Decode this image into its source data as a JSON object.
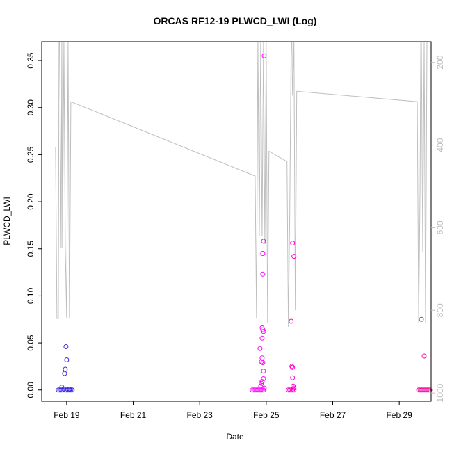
{
  "chart_data": {
    "type": "scatter",
    "title": "ORCAS RF12-19 PLWCD_LWI (Log)",
    "xlabel": "Date",
    "ylabel": "PLWCD_LWI",
    "xlim": [
      "2016-02-18T06:00",
      "2016-02-29T23:00"
    ],
    "ylim": [
      -0.012,
      0.37
    ],
    "y_ticks": [
      0.0,
      0.05,
      0.1,
      0.15,
      0.2,
      0.25,
      0.3,
      0.35
    ],
    "y_tick_labels": [
      "0.00",
      "0.05",
      "0.10",
      "0.15",
      "0.20",
      "0.25",
      "0.30",
      "0.35"
    ],
    "x_ticks": [
      "2016-02-19",
      "2016-02-21",
      "2016-02-23",
      "2016-02-25",
      "2016-02-27",
      "2016-02-29"
    ],
    "x_tick_labels": [
      "Feb 19",
      "Feb 21",
      "Feb 23",
      "Feb 25",
      "Feb 27",
      "Feb 29"
    ],
    "right_axis": {
      "reversed": true,
      "lim": [
        1020,
        150
      ],
      "ticks": [
        200,
        400,
        600,
        800,
        1000
      ],
      "tick_labels": [
        "200",
        "400",
        "600",
        "800",
        "1000"
      ],
      "color": "#bebebe"
    },
    "grid": false,
    "legend": "none",
    "series": [
      {
        "color": "#3c28e0",
        "points": [
          [
            "2016-02-18T18:00",
            0.0
          ],
          [
            "2016-02-18T19:00",
            0.0
          ],
          [
            "2016-02-18T20:00",
            0.0
          ],
          [
            "2016-02-18T21:00",
            0.0
          ],
          [
            "2016-02-18T22:00",
            0.001
          ],
          [
            "2016-02-18T23:00",
            0.0
          ],
          [
            "2016-02-19T00:00",
            0.0
          ],
          [
            "2016-02-19T01:00",
            0.0
          ],
          [
            "2016-02-19T02:00",
            0.0
          ],
          [
            "2016-02-19T03:00",
            0.0
          ],
          [
            "2016-02-19T04:00",
            0.0
          ],
          [
            "2016-02-18T20:30",
            0.003
          ],
          [
            "2016-02-18T22:30",
            0.0175
          ],
          [
            "2016-02-18T23:00",
            0.022
          ],
          [
            "2016-02-19T00:00",
            0.032
          ],
          [
            "2016-02-18T23:30",
            0.046
          ],
          [
            "2016-02-19T02:00",
            0.001
          ]
        ]
      },
      {
        "color": "#ff00ff",
        "points": [
          [
            "2016-02-24T14:00",
            0.0
          ],
          [
            "2016-02-24T15:00",
            0.0
          ],
          [
            "2016-02-24T16:00",
            0.0
          ],
          [
            "2016-02-24T17:00",
            0.0
          ],
          [
            "2016-02-24T18:00",
            0.0
          ],
          [
            "2016-02-24T19:00",
            0.0
          ],
          [
            "2016-02-24T20:00",
            0.0
          ],
          [
            "2016-02-24T21:00",
            0.0
          ],
          [
            "2016-02-24T22:00",
            0.0
          ],
          [
            "2016-02-24T20:00",
            0.004
          ],
          [
            "2016-02-24T20:30",
            0.007
          ],
          [
            "2016-02-24T21:00",
            0.009
          ],
          [
            "2016-02-24T19:30",
            0.044
          ],
          [
            "2016-02-24T20:30",
            0.03
          ],
          [
            "2016-02-24T21:00",
            0.034
          ],
          [
            "2016-02-24T21:30",
            0.029
          ],
          [
            "2016-02-24T22:00",
            0.02
          ],
          [
            "2016-02-24T21:00",
            0.055
          ],
          [
            "2016-02-24T21:00",
            0.066
          ],
          [
            "2016-02-24T21:30",
            0.064
          ],
          [
            "2016-02-24T22:00",
            0.062
          ],
          [
            "2016-02-24T21:30",
            0.123
          ],
          [
            "2016-02-24T21:30",
            0.145
          ],
          [
            "2016-02-24T22:00",
            0.158
          ],
          [
            "2016-02-24T22:30",
            0.355
          ],
          [
            "2016-02-24T22:00",
            0.012
          ],
          [
            "2016-02-24T22:30",
            0.002
          ]
        ]
      },
      {
        "color": "#ff00cc",
        "points": [
          [
            "2016-02-25T16:00",
            0.0
          ],
          [
            "2016-02-25T17:00",
            0.0
          ],
          [
            "2016-02-25T18:00",
            0.0
          ],
          [
            "2016-02-25T19:00",
            0.0
          ],
          [
            "2016-02-25T20:00",
            0.0
          ],
          [
            "2016-02-25T18:00",
            0.073
          ],
          [
            "2016-02-25T18:30",
            0.025
          ],
          [
            "2016-02-25T19:00",
            0.024
          ],
          [
            "2016-02-25T19:00",
            0.013
          ],
          [
            "2016-02-25T19:30",
            0.004
          ],
          [
            "2016-02-25T19:00",
            0.156
          ],
          [
            "2016-02-25T20:00",
            0.142
          ],
          [
            "2016-02-25T20:00",
            0.002
          ]
        ]
      },
      {
        "color": "#ff0099",
        "points": [
          [
            "2016-02-29T14:00",
            0.0
          ],
          [
            "2016-02-29T15:00",
            0.0
          ],
          [
            "2016-02-29T16:00",
            0.0
          ],
          [
            "2016-02-29T17:00",
            0.0
          ],
          [
            "2016-02-29T18:00",
            0.0
          ],
          [
            "2016-02-29T19:00",
            0.0
          ],
          [
            "2016-02-29T20:00",
            0.0
          ],
          [
            "2016-02-29T21:00",
            0.0
          ],
          [
            "2016-02-29T22:00",
            0.0
          ],
          [
            "2016-02-29T16:00",
            0.075
          ],
          [
            "2016-02-29T18:00",
            0.036
          ]
        ]
      }
    ],
    "overlay_line": {
      "axis": "right",
      "color": "#bebebe",
      "points": [
        [
          "2016-02-18T16:00",
          405
        ],
        [
          "2016-02-18T17:00",
          820
        ],
        [
          "2016-02-18T18:00",
          820
        ],
        [
          "2016-02-18T18:30",
          150
        ],
        [
          "2016-02-18T19:00",
          150
        ],
        [
          "2016-02-18T20:00",
          650
        ],
        [
          "2016-02-18T20:30",
          150
        ],
        [
          "2016-02-18T21:00",
          650
        ],
        [
          "2016-02-18T22:00",
          150
        ],
        [
          "2016-02-18T23:00",
          650
        ],
        [
          "2016-02-19T00:00",
          820
        ],
        [
          "2016-02-19T01:00",
          150
        ],
        [
          "2016-02-19T02:00",
          820
        ],
        [
          "2016-02-19T03:00",
          295
        ],
        [
          "2016-02-24T16:00",
          475
        ],
        [
          "2016-02-24T17:00",
          820
        ],
        [
          "2016-02-24T18:00",
          150
        ],
        [
          "2016-02-24T19:00",
          620
        ],
        [
          "2016-02-24T20:00",
          150
        ],
        [
          "2016-02-24T21:00",
          620
        ],
        [
          "2016-02-24T22:00",
          150
        ],
        [
          "2016-02-24T23:00",
          640
        ],
        [
          "2016-02-25T00:00",
          150
        ],
        [
          "2016-02-25T01:00",
          830
        ],
        [
          "2016-02-25T02:00",
          415
        ],
        [
          "2016-02-25T15:00",
          440
        ],
        [
          "2016-02-25T16:00",
          840
        ],
        [
          "2016-02-25T17:00",
          560
        ],
        [
          "2016-02-25T18:00",
          150
        ],
        [
          "2016-02-25T18:30",
          150
        ],
        [
          "2016-02-25T19:00",
          280
        ],
        [
          "2016-02-25T20:00",
          150
        ],
        [
          "2016-02-25T21:00",
          800
        ],
        [
          "2016-02-25T22:00",
          270
        ],
        [
          "2016-02-29T13:00",
          295
        ],
        [
          "2016-02-29T14:00",
          830
        ],
        [
          "2016-02-29T15:00",
          510
        ],
        [
          "2016-02-29T15:30",
          150
        ],
        [
          "2016-02-29T16:00",
          150
        ],
        [
          "2016-02-29T17:00",
          660
        ],
        [
          "2016-02-29T18:00",
          150
        ],
        [
          "2016-02-29T19:00",
          830
        ],
        [
          "2016-02-29T20:00",
          150
        ]
      ]
    }
  }
}
